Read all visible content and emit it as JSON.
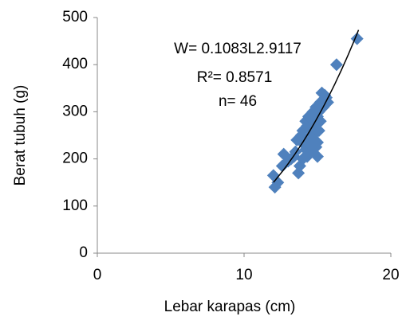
{
  "chart_data": {
    "type": "scatter",
    "x_label": "Lebar karapas (cm)",
    "y_label": "Berat tubuh (g)",
    "annotations": [
      "W= 0.1083L2.9117",
      "R²= 0.8571",
      "n= 46"
    ],
    "color": "#4f81bd",
    "series": [
      {
        "x": [
          12.0,
          12.1,
          12.3,
          12.6,
          12.7,
          13.0,
          13.2,
          13.5,
          13.6,
          13.7,
          13.8,
          13.9,
          14.0,
          14.0,
          14.1,
          14.2,
          14.2,
          14.3,
          14.4,
          14.4,
          14.5,
          14.5,
          14.6,
          14.6,
          14.7,
          14.7,
          14.8,
          14.8,
          14.9,
          14.9,
          15.0,
          15.0,
          15.1,
          15.1,
          15.2,
          15.2,
          15.3,
          15.4,
          15.5,
          15.6,
          15.7,
          15.0,
          14.3,
          13.4,
          16.3,
          17.7
        ],
        "values": [
          165,
          140,
          150,
          185,
          210,
          195,
          200,
          215,
          240,
          170,
          185,
          250,
          260,
          200,
          230,
          280,
          220,
          270,
          245,
          290,
          230,
          260,
          285,
          215,
          300,
          250,
          240,
          275,
          310,
          225,
          290,
          235,
          260,
          300,
          320,
          280,
          340,
          310,
          335,
          330,
          320,
          205,
          205,
          205,
          400,
          455
        ]
      }
    ],
    "trendline": {
      "coefficient": 0.1083,
      "exponent": 2.9117,
      "x_range": [
        12,
        17.8
      ],
      "color": "#000000"
    },
    "xlim": [
      0,
      20
    ],
    "xticks": [
      0,
      10,
      20
    ],
    "ylim": [
      0,
      500
    ],
    "yticks": [
      0,
      100,
      200,
      300,
      400,
      500
    ],
    "grid": false
  }
}
